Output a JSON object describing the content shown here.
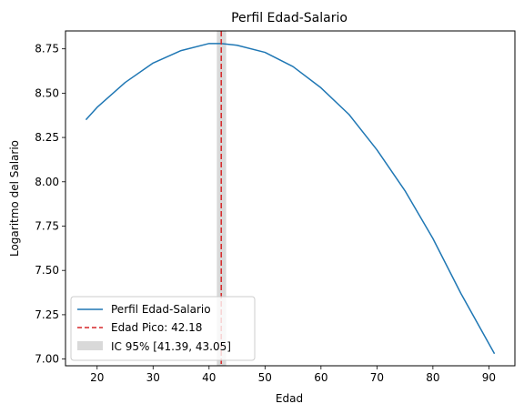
{
  "chart_data": {
    "type": "line",
    "title": "Perfil Edad-Salario",
    "xlabel": "Edad",
    "ylabel": "Logaritmo del Salario",
    "xlim": [
      14.35,
      94.65
    ],
    "ylim": [
      6.962,
      8.851
    ],
    "xticks": [
      20,
      30,
      40,
      50,
      60,
      70,
      80,
      90
    ],
    "yticks": [
      7.0,
      7.25,
      7.5,
      7.75,
      8.0,
      8.25,
      8.5,
      8.75
    ],
    "grid": false,
    "legend_position": "lower-left",
    "series": [
      {
        "name": "Perfil Edad-Salario",
        "color": "#1f77b4",
        "x": [
          18,
          20,
          25,
          30,
          35,
          40,
          42.18,
          45,
          50,
          55,
          60,
          65,
          70,
          75,
          80,
          85,
          91
        ],
        "y": [
          8.35,
          8.42,
          8.56,
          8.67,
          8.74,
          8.78,
          8.78,
          8.77,
          8.73,
          8.65,
          8.53,
          8.38,
          8.18,
          7.95,
          7.68,
          7.37,
          7.03
        ]
      }
    ],
    "peak_line": {
      "name": "Edad Pico: 42.18",
      "x": 42.18,
      "color": "#d62728",
      "style": "dashed"
    },
    "confidence_band": {
      "name": "IC 95% [41.39, 43.05]",
      "x_low": 41.39,
      "x_high": 43.05,
      "color": "#aaaaaa"
    }
  }
}
